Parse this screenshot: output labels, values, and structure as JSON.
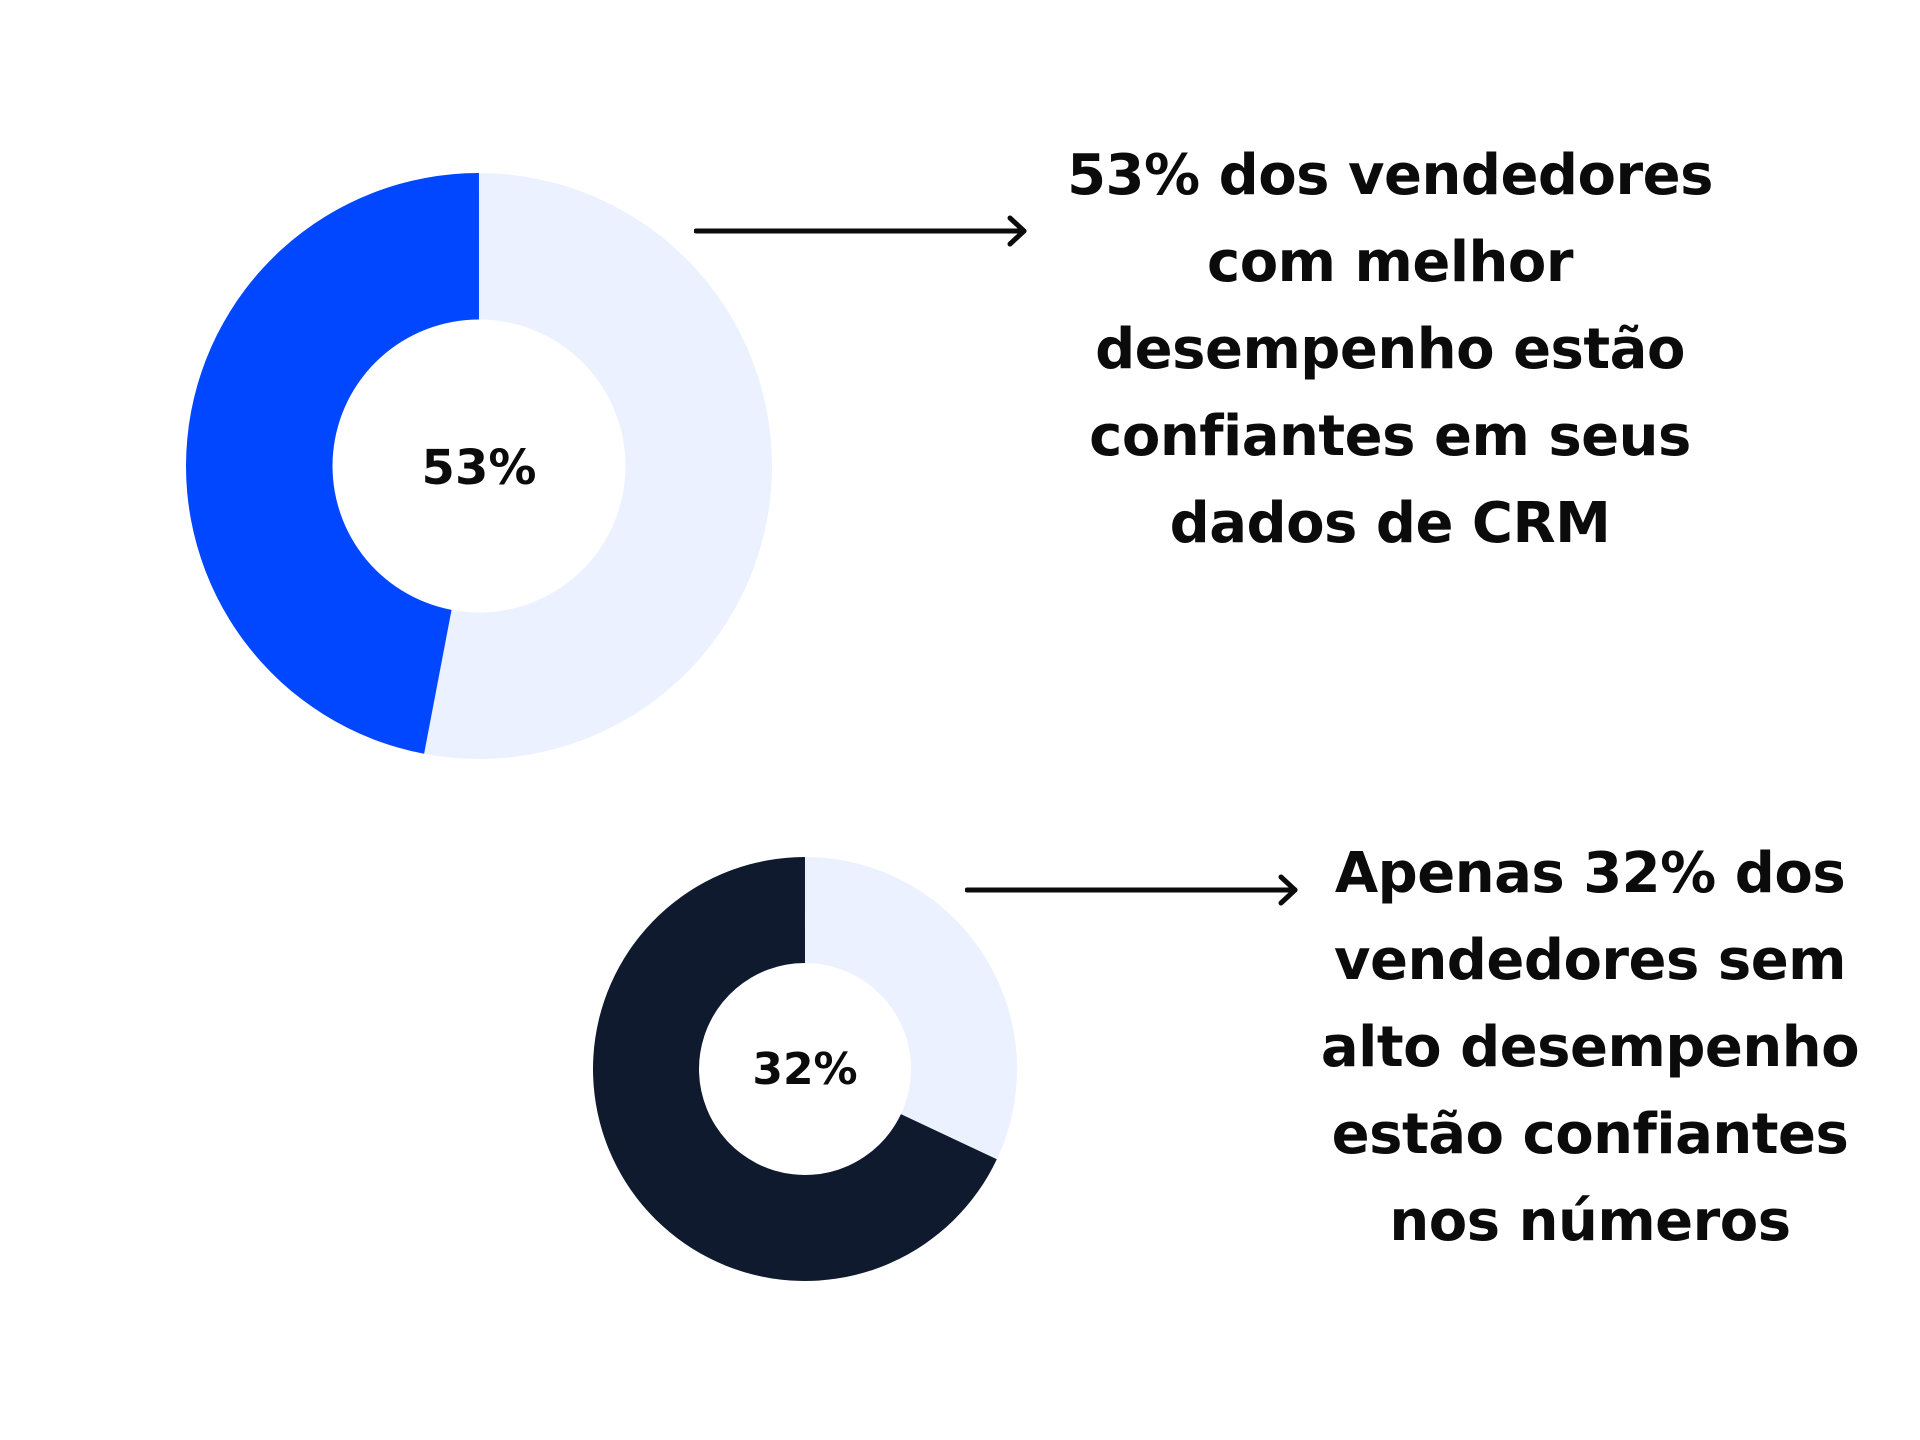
{
  "chart_data": [
    {
      "type": "pie",
      "variant": "donut",
      "center_label": "53%",
      "slices": [
        {
          "value": 53,
          "color": "#EBF1FE"
        },
        {
          "value": 47,
          "color": "#0047FF"
        }
      ],
      "caption_lines": [
        "53% dos vendedores",
        "com melhor",
        "desempenho estão",
        "confiantes em seus",
        "dados de CRM"
      ]
    },
    {
      "type": "pie",
      "variant": "donut",
      "center_label": "32%",
      "slices": [
        {
          "value": 32,
          "color": "#EBF1FE"
        },
        {
          "value": 68,
          "color": "#0F1A2F"
        }
      ],
      "caption_lines": [
        "Apenas 32% dos",
        "vendedores sem",
        "alto desempenho",
        "estão confiantes",
        "nos números"
      ]
    }
  ],
  "colors": {
    "background": "#FFFFFF",
    "text": "#0B0B0B",
    "arrow": "#0B0B0B",
    "track": "#EBF1FE",
    "accent_blue": "#0047FF",
    "accent_navy": "#0F1A2F"
  }
}
